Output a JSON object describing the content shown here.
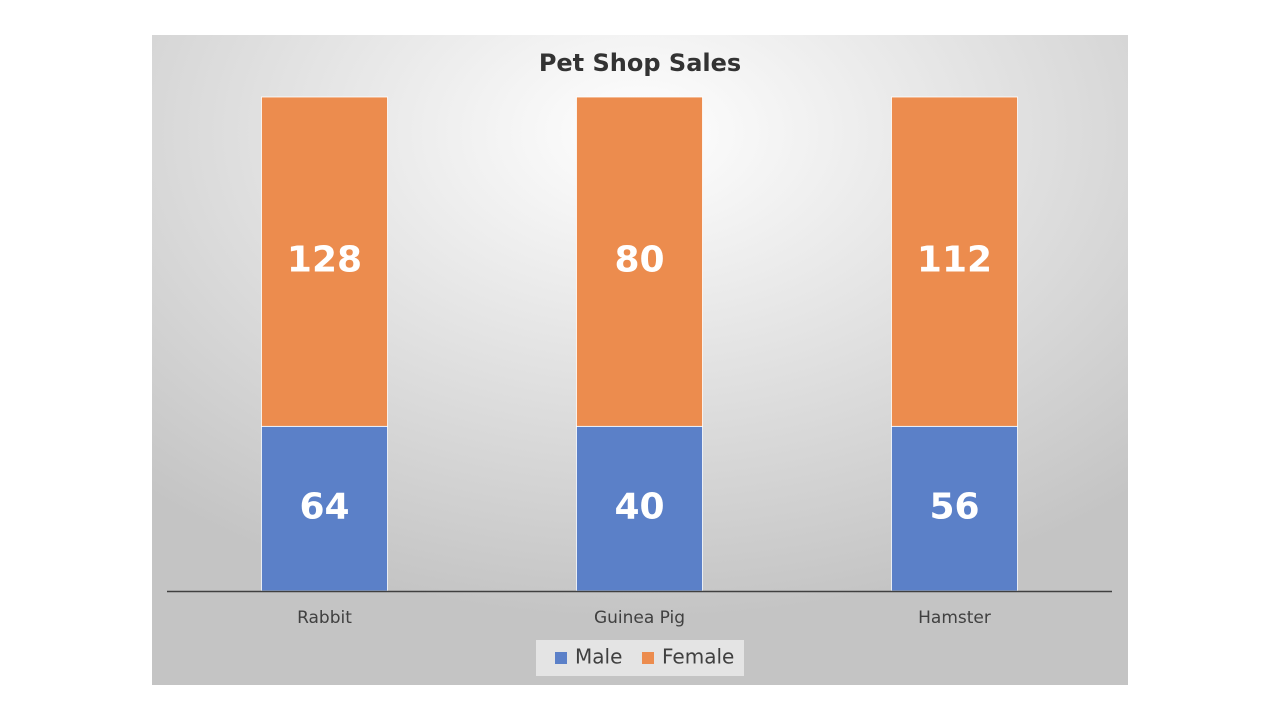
{
  "chart_data": {
    "type": "bar",
    "stacking": "percent",
    "title": "Pet Shop Sales",
    "categories": [
      "Rabbit",
      "Guinea Pig",
      "Hamster"
    ],
    "series": [
      {
        "name": "Male",
        "color": "#5b80c8",
        "values": [
          64,
          40,
          56
        ]
      },
      {
        "name": "Female",
        "color": "#ec8c4e",
        "values": [
          128,
          80,
          112
        ]
      }
    ],
    "legend": "bottom"
  }
}
